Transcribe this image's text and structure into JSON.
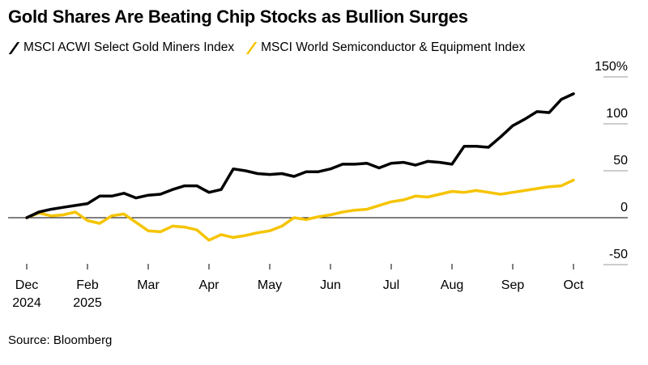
{
  "chart_data": {
    "type": "line",
    "title": "Gold Shares Are Beating Chip Stocks as Bullion Surges",
    "source": "Source: Bloomberg",
    "categories": [
      "Dec 2024",
      null,
      null,
      null,
      null,
      "Feb 2025",
      null,
      null,
      null,
      null,
      "Mar",
      null,
      null,
      null,
      null,
      "Apr",
      null,
      null,
      null,
      null,
      "May",
      null,
      null,
      null,
      null,
      "Jun",
      null,
      null,
      null,
      null,
      "Jul",
      null,
      null,
      null,
      null,
      "Aug",
      null,
      null,
      null,
      null,
      "Sep",
      null,
      null,
      null,
      null,
      "Oct"
    ],
    "series": [
      {
        "name": "MSCI ACWI Select Gold Miners Index",
        "color": "#000000",
        "values": [
          0,
          6,
          9,
          11,
          13,
          15,
          23,
          23,
          26,
          21,
          24,
          25,
          30,
          34,
          34,
          27,
          30,
          52,
          50,
          47,
          46,
          47,
          44,
          49,
          49,
          52,
          57,
          57,
          58,
          53,
          58,
          59,
          56,
          60,
          59,
          57,
          76,
          76,
          75,
          86,
          98,
          105,
          113,
          112,
          126,
          132
        ]
      },
      {
        "name": "MSCI World Semiconductor & Equipment Index",
        "color": "#f5c400",
        "values": [
          0,
          5,
          2,
          3,
          6,
          -3,
          -6,
          2,
          4,
          -5,
          -14,
          -15,
          -9,
          -10,
          -13,
          -24,
          -18,
          -21,
          -19,
          -16,
          -14,
          -9,
          0,
          -2,
          1,
          3,
          6,
          8,
          9,
          13,
          17,
          19,
          23,
          22,
          25,
          28,
          27,
          29,
          27,
          25,
          27,
          29,
          31,
          33,
          34,
          40
        ]
      }
    ],
    "ylim": [
      -50,
      150
    ],
    "yticks": [
      -50,
      0,
      50,
      100,
      {
        "value": 150,
        "label": "150%"
      }
    ],
    "grid": false
  }
}
